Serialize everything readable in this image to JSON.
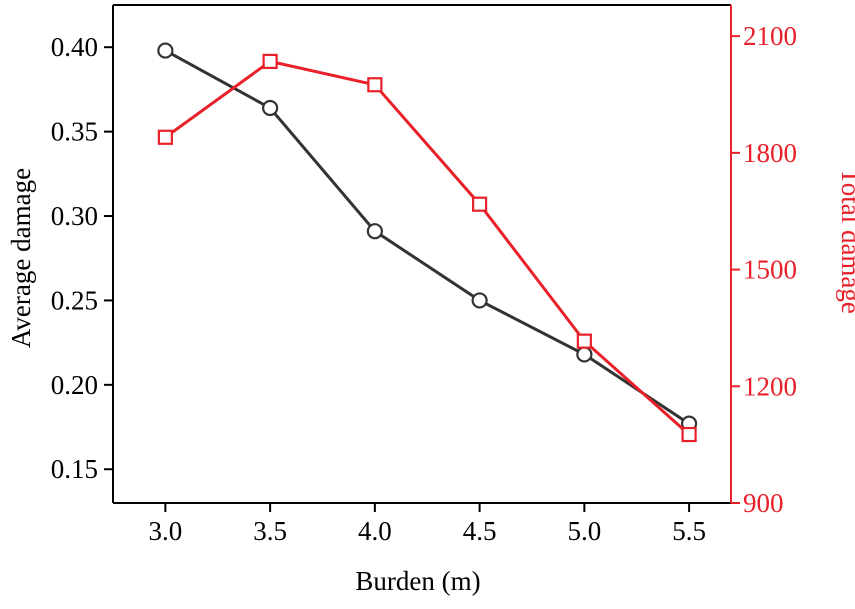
{
  "chart_data": {
    "type": "line",
    "title": "",
    "xlabel": "Burden (m)",
    "ylabel_left": "Average damage",
    "ylabel_right": "Total damage",
    "x": [
      3.0,
      3.5,
      4.0,
      4.5,
      5.0,
      5.5
    ],
    "x_tick_labels": [
      "3.0",
      "3.5",
      "4.0",
      "4.5",
      "5.0",
      "5.5"
    ],
    "xlim": [
      2.75,
      5.7
    ],
    "y_left_ticks": [
      0.15,
      0.2,
      0.25,
      0.3,
      0.35,
      0.4
    ],
    "y_left_tick_labels": [
      "0.15",
      "0.20",
      "0.25",
      "0.30",
      "0.35",
      "0.40"
    ],
    "y_left_lim": [
      0.13,
      0.425
    ],
    "y_right_ticks": [
      900,
      1200,
      1500,
      1800,
      2100
    ],
    "y_right_tick_labels": [
      "900",
      "1200",
      "1500",
      "1800",
      "2100"
    ],
    "y_right_lim": [
      900,
      2180
    ],
    "grid": false,
    "series": [
      {
        "name": "Average damage",
        "axis": "left",
        "marker": "circle",
        "color": "#333333",
        "values": [
          0.398,
          0.364,
          0.291,
          0.25,
          0.218,
          0.177
        ]
      },
      {
        "name": "Total damage",
        "axis": "right",
        "marker": "square",
        "color": "#e8202a",
        "values": [
          1840,
          2035,
          1975,
          1668,
          1316,
          1076
        ]
      }
    ],
    "colors": {
      "left_axis": "#000000",
      "right_axis": "#e8202a"
    }
  }
}
